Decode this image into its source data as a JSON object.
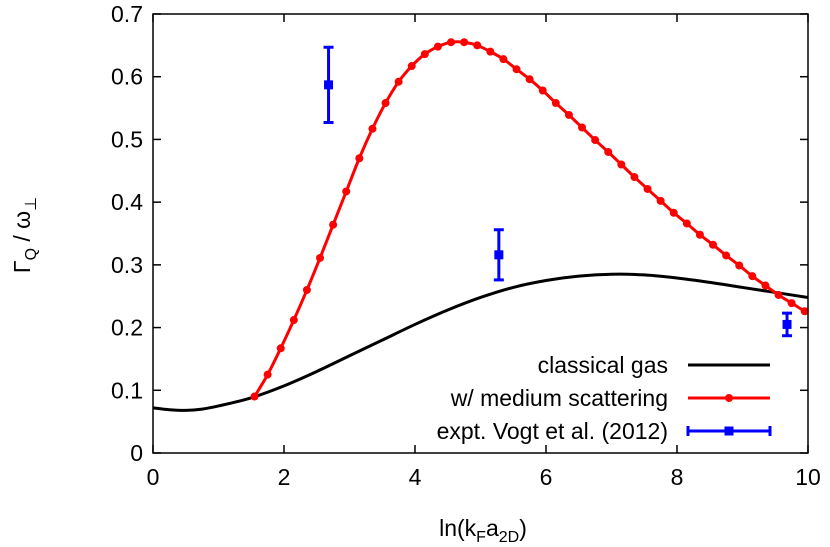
{
  "chart_data": {
    "type": "line",
    "xlabel": "ln(k_F a_2D)",
    "xlabel_parts": {
      "pre": "ln(k",
      "sub1": "F",
      "mid": "a",
      "sub2": "2D",
      "post": ")"
    },
    "ylabel": "Γ_Q / ω_⊥",
    "ylabel_parts": {
      "gamma": "Γ",
      "gamma_sub": "Q",
      "slash": " / ",
      "omega": "ω",
      "omega_sub": "⊥"
    },
    "xlim": [
      0,
      10
    ],
    "ylim": [
      0,
      0.7
    ],
    "x_ticks": [
      "0",
      "2",
      "4",
      "6",
      "8",
      "10"
    ],
    "y_ticks": [
      "0",
      "0.1",
      "0.2",
      "0.3",
      "0.4",
      "0.5",
      "0.6",
      "0.7"
    ],
    "grid": false,
    "legend_position": "bottom-right",
    "series": [
      {
        "name": "classical gas",
        "style": "line",
        "color": "#000000",
        "x": [
          0,
          0.25,
          0.5,
          0.75,
          1.0,
          1.5,
          2.0,
          2.5,
          3.0,
          3.5,
          4.0,
          4.5,
          5.0,
          5.5,
          6.0,
          6.5,
          7.0,
          7.5,
          8.0,
          8.5,
          9.0,
          9.5,
          10.0
        ],
        "y": [
          0.072,
          0.069,
          0.068,
          0.07,
          0.075,
          0.088,
          0.107,
          0.13,
          0.155,
          0.18,
          0.205,
          0.228,
          0.248,
          0.264,
          0.275,
          0.282,
          0.285,
          0.284,
          0.279,
          0.272,
          0.264,
          0.256,
          0.248
        ]
      },
      {
        "name": "w/ medium scattering",
        "style": "linepoints",
        "color": "#ff0000",
        "x": [
          1.55,
          1.75,
          1.95,
          2.15,
          2.35,
          2.55,
          2.75,
          2.95,
          3.15,
          3.35,
          3.55,
          3.75,
          3.95,
          4.15,
          4.35,
          4.55,
          4.75,
          4.95,
          5.15,
          5.35,
          5.55,
          5.75,
          5.95,
          6.15,
          6.35,
          6.55,
          6.75,
          6.95,
          7.15,
          7.35,
          7.55,
          7.75,
          7.95,
          8.15,
          8.35,
          8.55,
          8.75,
          8.95,
          9.15,
          9.35,
          9.55,
          9.75,
          9.95
        ],
        "y": [
          0.09,
          0.125,
          0.167,
          0.212,
          0.26,
          0.311,
          0.364,
          0.417,
          0.47,
          0.517,
          0.558,
          0.592,
          0.617,
          0.636,
          0.648,
          0.655,
          0.655,
          0.65,
          0.64,
          0.628,
          0.612,
          0.596,
          0.578,
          0.558,
          0.539,
          0.519,
          0.499,
          0.48,
          0.46,
          0.44,
          0.421,
          0.402,
          0.383,
          0.366,
          0.348,
          0.332,
          0.315,
          0.299,
          0.282,
          0.267,
          0.252,
          0.239,
          0.226
        ]
      },
      {
        "name": "expt. Vogt et al. (2012)",
        "style": "errorbars",
        "color": "#0000ff",
        "x": [
          2.68,
          5.28,
          9.68
        ],
        "y": [
          0.587,
          0.316,
          0.205
        ],
        "err_low": [
          0.06,
          0.04,
          0.018
        ],
        "err_high": [
          0.06,
          0.04,
          0.018
        ]
      }
    ]
  }
}
